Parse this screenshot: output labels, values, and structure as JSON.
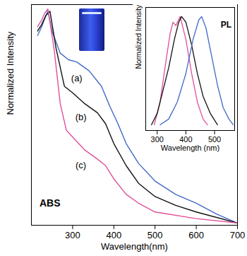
{
  "chart_data": [
    {
      "type": "line",
      "x_label": "Wavelength(nm)",
      "y_label": "Normalized Intensity",
      "xlim": [
        200,
        700
      ],
      "xticks": [
        300,
        400,
        500,
        600,
        700
      ],
      "ylim": [
        0,
        1
      ],
      "yticks": [],
      "tick_labels": "x",
      "series": [
        {
          "color": "#4169c8",
          "x": [
            215,
            225,
            235,
            240,
            250,
            270,
            290,
            310,
            340,
            370,
            390,
            410,
            430,
            460,
            500,
            550,
            600,
            650,
            700
          ],
          "values": [
            0.86,
            0.9,
            0.95,
            0.97,
            0.88,
            0.78,
            0.75,
            0.74,
            0.7,
            0.63,
            0.54,
            0.46,
            0.37,
            0.28,
            0.2,
            0.14,
            0.1,
            0.05,
            0.01
          ]
        },
        {
          "color": "#111111",
          "x": [
            215,
            225,
            235,
            245,
            260,
            280,
            300,
            330,
            360,
            380,
            400,
            430,
            460,
            500,
            550,
            600,
            700
          ],
          "values": [
            0.88,
            0.91,
            0.95,
            0.97,
            0.8,
            0.63,
            0.6,
            0.55,
            0.51,
            0.46,
            0.37,
            0.27,
            0.19,
            0.13,
            0.09,
            0.06,
            0.01
          ]
        },
        {
          "color": "#e0509a",
          "x": [
            215,
            225,
            232,
            240,
            255,
            270,
            285,
            300,
            330,
            360,
            380,
            400,
            430,
            460,
            500,
            600,
            700
          ],
          "values": [
            0.9,
            0.93,
            0.96,
            0.98,
            0.8,
            0.55,
            0.43,
            0.4,
            0.34,
            0.3,
            0.27,
            0.21,
            0.14,
            0.1,
            0.06,
            0.03,
            0.01
          ]
        }
      ],
      "annotations": [
        {
          "text": "ABS",
          "x": 245,
          "y": 0.1
        },
        {
          "text": "(a)",
          "x": 310,
          "y": 0.665
        },
        {
          "text": "(b)",
          "x": 320,
          "y": 0.49
        },
        {
          "text": "(c)",
          "x": 320,
          "y": 0.27
        }
      ]
    },
    {
      "type": "line",
      "x_label": "Wavelength (nm)",
      "y_label": "Normalized Intensity",
      "xlim": [
        260,
        570
      ],
      "xticks": [
        300,
        400,
        500
      ],
      "ylim": [
        0,
        1.08
      ],
      "yticks": [],
      "tick_labels": "x",
      "series": [
        {
          "color": "#e0509a",
          "x": [
            290,
            310,
            330,
            345,
            355,
            365,
            380,
            400,
            420,
            440,
            460,
            475
          ],
          "values": [
            0.05,
            0.25,
            0.6,
            0.85,
            0.95,
            0.92,
            1.0,
            0.8,
            0.5,
            0.25,
            0.1,
            0.05
          ]
        },
        {
          "color": "#111111",
          "x": [
            280,
            300,
            320,
            340,
            360,
            375,
            385,
            400,
            420,
            440,
            460,
            485,
            510
          ],
          "values": [
            0.05,
            0.15,
            0.35,
            0.55,
            0.8,
            0.95,
            1.0,
            0.95,
            0.75,
            0.5,
            0.3,
            0.15,
            0.05
          ]
        },
        {
          "color": "#4169c8",
          "x": [
            310,
            340,
            370,
            400,
            425,
            445,
            455,
            470,
            490,
            510,
            530,
            550,
            565
          ],
          "values": [
            0.05,
            0.1,
            0.25,
            0.5,
            0.8,
            0.97,
            1.0,
            0.9,
            0.65,
            0.4,
            0.2,
            0.1,
            0.05
          ]
        }
      ],
      "annotations": [
        {
          "text": "PL",
          "x": 540,
          "y": 0.93
        }
      ]
    }
  ]
}
